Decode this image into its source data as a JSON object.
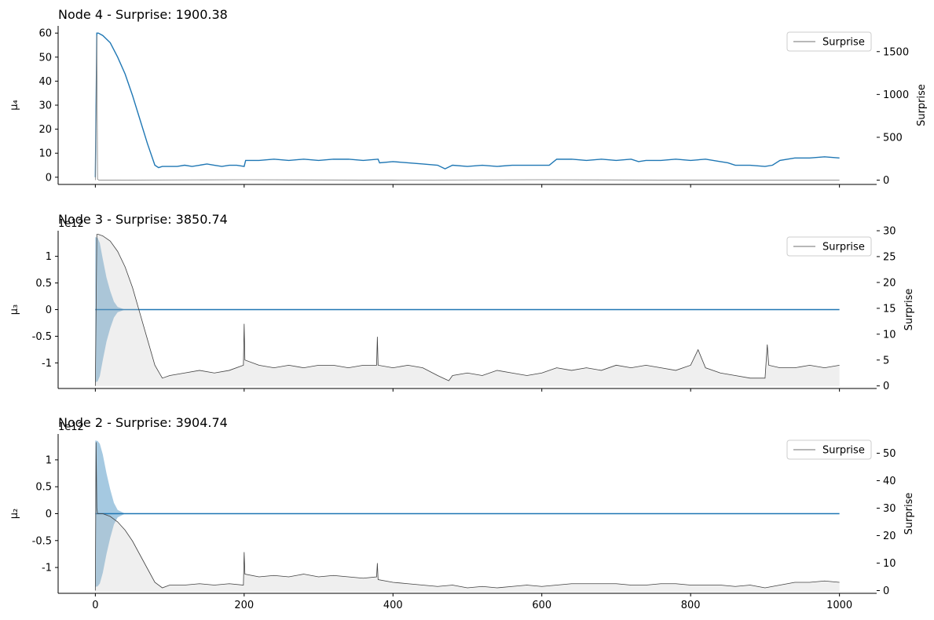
{
  "chart_data": [
    {
      "type": "line",
      "title": "Node 4 - Surprise: 1900.38",
      "ylabel": "μ₄",
      "ylabel_right": "Surprise",
      "y_offset_label": "",
      "xlim": [
        -50,
        1050
      ],
      "ylim": [
        -3,
        63
      ],
      "ylim_right": [
        -50,
        1800
      ],
      "y_ticks": [
        0,
        10,
        20,
        30,
        40,
        50,
        60
      ],
      "y_right_ticks": [
        0,
        500,
        1000,
        1500
      ],
      "x_ticks_labeled": false,
      "legend": {
        "label": "Surprise",
        "placement": "top-right"
      },
      "series": [
        {
          "axis": "left",
          "color": "#1f77b4",
          "x": [
            0,
            2,
            4,
            10,
            20,
            30,
            40,
            50,
            60,
            70,
            80,
            85,
            90,
            100,
            110,
            120,
            130,
            140,
            150,
            160,
            170,
            180,
            190,
            200,
            202,
            210,
            220,
            240,
            260,
            280,
            300,
            320,
            340,
            360,
            380,
            382,
            400,
            420,
            440,
            460,
            470,
            480,
            500,
            520,
            540,
            560,
            580,
            600,
            610,
            620,
            640,
            660,
            680,
            700,
            720,
            730,
            740,
            760,
            780,
            800,
            820,
            840,
            850,
            860,
            880,
            900,
            910,
            920,
            940,
            960,
            980,
            1000
          ],
          "y": [
            0,
            60,
            60,
            59,
            56,
            50,
            43,
            34,
            24,
            14,
            5,
            4,
            4.5,
            4.5,
            4.5,
            5,
            4.5,
            5,
            5.5,
            5,
            4.5,
            5,
            5,
            4.5,
            7,
            7,
            7,
            7.5,
            7,
            7.5,
            7,
            7.5,
            7.5,
            7,
            7.5,
            6,
            6.5,
            6,
            5.5,
            5,
            3.5,
            5,
            4.5,
            5,
            4.5,
            5,
            5,
            5,
            5,
            7.5,
            7.5,
            7,
            7.5,
            7,
            7.5,
            6.5,
            7,
            7,
            7.5,
            7,
            7.5,
            6.5,
            6,
            5,
            5,
            4.5,
            5,
            7,
            8,
            8,
            8.5,
            8
          ]
        },
        {
          "axis": "right",
          "color": "#808080",
          "x": [
            0,
            2,
            3,
            5,
            200,
            400,
            600,
            800,
            1000
          ],
          "y": [
            0,
            1690,
            10,
            0,
            5,
            0,
            5,
            0,
            0
          ]
        }
      ]
    },
    {
      "type": "line",
      "title": "Node 3 - Surprise: 3850.74",
      "ylabel": "μ₃",
      "ylabel_right": "Surprise",
      "y_offset_label": "1e12",
      "xlim": [
        -50,
        1050
      ],
      "ylim": [
        -1.48,
        1.48
      ],
      "ylim_right": [
        -0.5,
        30
      ],
      "y_ticks": [
        -1.0,
        -0.5,
        0.0,
        0.5,
        1.0
      ],
      "y_right_ticks": [
        0,
        5,
        10,
        15,
        20,
        25,
        30
      ],
      "x_ticks_labeled": false,
      "legend": {
        "label": "Surprise",
        "placement": "top-right"
      },
      "band": {
        "x": [
          0,
          3,
          6,
          10,
          15,
          20,
          25,
          30,
          40
        ],
        "half_width": [
          1.36,
          1.35,
          1.25,
          0.95,
          0.6,
          0.35,
          0.15,
          0.05,
          0
        ]
      },
      "series": [
        {
          "axis": "left",
          "color": "#1f77b4",
          "x": [
            0,
            1000
          ],
          "y": [
            0,
            0
          ]
        },
        {
          "axis": "right",
          "color": "#404040",
          "x": [
            0,
            2,
            4,
            10,
            20,
            30,
            40,
            50,
            60,
            70,
            80,
            90,
            100,
            120,
            140,
            160,
            180,
            199,
            200,
            201,
            220,
            240,
            260,
            280,
            300,
            320,
            340,
            360,
            378,
            379,
            380,
            400,
            420,
            440,
            460,
            475,
            480,
            500,
            520,
            540,
            560,
            580,
            600,
            620,
            640,
            660,
            680,
            700,
            720,
            740,
            760,
            780,
            800,
            810,
            820,
            840,
            860,
            880,
            900,
            903,
            905,
            920,
            940,
            960,
            980,
            1000
          ],
          "y": [
            0,
            29.3,
            29.3,
            29,
            28,
            26,
            23,
            19,
            14,
            9,
            4,
            1.5,
            2,
            2.5,
            3,
            2.5,
            3,
            4,
            12,
            5,
            4,
            3.5,
            4,
            3.5,
            4,
            4,
            3.5,
            4,
            4,
            9.5,
            4,
            3.5,
            4,
            3.5,
            2,
            1,
            2,
            2.5,
            2,
            3,
            2.5,
            2,
            2.5,
            3.5,
            3,
            3.5,
            3,
            4,
            3.5,
            4,
            3.5,
            3,
            4,
            7,
            3.5,
            2.5,
            2,
            1.5,
            1.5,
            8,
            4,
            3.5,
            3.5,
            4,
            3.5,
            4
          ]
        }
      ]
    },
    {
      "type": "line",
      "title": "Node 2 - Surprise: 3904.74",
      "ylabel": "μ₂",
      "ylabel_right": "Surprise",
      "y_offset_label": "1e12",
      "xlim": [
        -50,
        1050
      ],
      "ylim": [
        -1.48,
        1.48
      ],
      "ylim_right": [
        -1,
        57
      ],
      "y_ticks": [
        -1.0,
        -0.5,
        0.0,
        0.5,
        1.0
      ],
      "y_right_ticks": [
        0,
        10,
        20,
        30,
        40,
        50
      ],
      "x_ticks": [
        0,
        200,
        400,
        600,
        800,
        1000
      ],
      "x_ticks_labeled": true,
      "legend": {
        "label": "Surprise",
        "placement": "top-right"
      },
      "band": {
        "x": [
          0,
          3,
          6,
          10,
          15,
          20,
          25,
          30,
          40
        ],
        "half_width": [
          1.36,
          1.35,
          1.3,
          1.1,
          0.75,
          0.45,
          0.2,
          0.07,
          0
        ]
      },
      "series": [
        {
          "axis": "left",
          "color": "#1f77b4",
          "x": [
            0,
            1000
          ],
          "y": [
            0,
            0
          ]
        },
        {
          "axis": "right",
          "color": "#404040",
          "x": [
            0,
            1,
            2,
            3,
            4,
            10,
            20,
            30,
            40,
            50,
            60,
            70,
            80,
            90,
            100,
            120,
            140,
            160,
            180,
            199,
            200,
            201,
            220,
            240,
            260,
            280,
            300,
            320,
            340,
            360,
            378,
            379,
            380,
            400,
            420,
            440,
            460,
            480,
            500,
            520,
            540,
            560,
            580,
            600,
            620,
            640,
            660,
            680,
            700,
            720,
            740,
            760,
            780,
            800,
            820,
            840,
            860,
            880,
            900,
            920,
            940,
            960,
            980,
            1000
          ],
          "y": [
            0,
            54,
            30,
            28,
            28,
            28,
            27,
            25,
            22,
            18,
            13,
            8,
            3,
            1,
            2,
            2,
            2.5,
            2,
            2.5,
            2,
            14,
            6,
            5,
            5.5,
            5,
            6,
            5,
            5.5,
            5,
            4.5,
            5,
            10,
            4,
            3,
            2.5,
            2,
            1.5,
            2,
            1,
            1.5,
            1,
            1.5,
            2,
            1.5,
            2,
            2.5,
            2.5,
            2.5,
            2.5,
            2,
            2,
            2.5,
            2.5,
            2,
            2,
            2,
            1.5,
            2,
            1,
            2,
            3,
            3,
            3.5,
            3
          ]
        }
      ]
    }
  ]
}
